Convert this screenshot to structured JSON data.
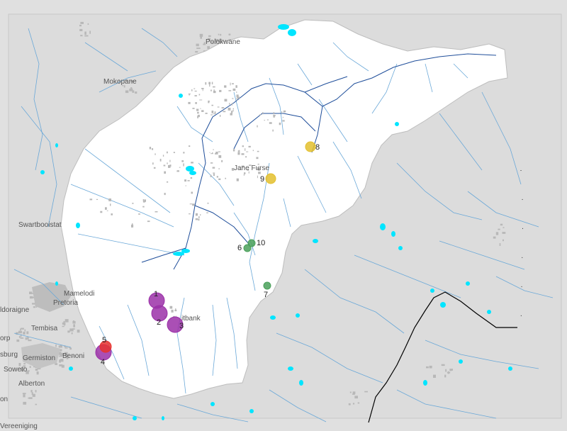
{
  "map": {
    "colors": {
      "outside": "#e0e0e0",
      "catchment": "#ffffff",
      "river": "#6aa8d8",
      "main_river": "#1f4e9a",
      "water": "#00e5ff",
      "urban": "#b8b8b8",
      "border": "#000000"
    },
    "towns": [
      {
        "name": "Polokwane"
      },
      {
        "name": "Mokopane"
      },
      {
        "name": "Jane Furse"
      },
      {
        "name": "Swartbooistat"
      },
      {
        "name": "Mamelodi"
      },
      {
        "name": "Pretoria"
      },
      {
        "name": "ldoraigne"
      },
      {
        "name": "Tembisa"
      },
      {
        "name": "Benoni"
      },
      {
        "name": "Germiston"
      },
      {
        "name": "Soweto"
      },
      {
        "name": "Alberton"
      },
      {
        "name": "Vereeniging"
      },
      {
        "name": "itbank"
      },
      {
        "name": "orp"
      },
      {
        "name": "sburg"
      },
      {
        "name": "on"
      }
    ],
    "sites": [
      {
        "id": "1",
        "group": "purple",
        "color": "#9b30a8"
      },
      {
        "id": "2",
        "group": "purple",
        "color": "#9b30a8"
      },
      {
        "id": "3",
        "group": "purple",
        "color": "#9b30a8"
      },
      {
        "id": "4",
        "group": "purple",
        "color": "#9b30a8"
      },
      {
        "id": "5",
        "group": "red",
        "color": "#e8322e"
      },
      {
        "id": "6",
        "group": "green",
        "color": "#4aa05a"
      },
      {
        "id": "7",
        "group": "green",
        "color": "#4aa05a"
      },
      {
        "id": "8",
        "group": "yellow",
        "color": "#e3c02e"
      },
      {
        "id": "9",
        "group": "yellow",
        "color": "#e3c02e"
      },
      {
        "id": "10",
        "group": "green",
        "color": "#4aa05a"
      }
    ]
  }
}
